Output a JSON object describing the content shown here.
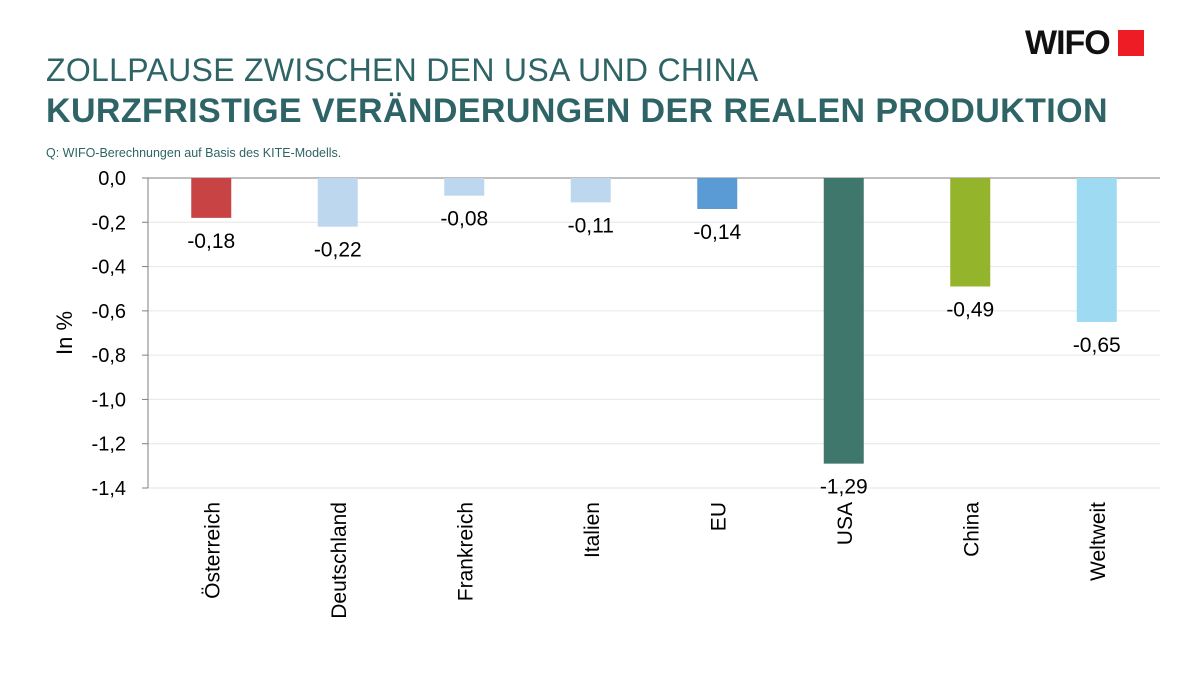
{
  "header": {
    "title_line1": "ZOLLPAUSE ZWISCHEN DEN USA UND CHINA",
    "title_line2": "KURZFRISTIGE VERÄNDERUNGEN DER REALEN PRODUKTION",
    "source": "Q: WIFO-Berechnungen auf Basis des KITE-Modells.",
    "logo_text": "WIFO",
    "logo_color": "#ee1c25"
  },
  "chart_data": {
    "type": "bar",
    "title": "KURZFRISTIGE VERÄNDERUNGEN DER REALEN PRODUKTION",
    "xlabel": "",
    "ylabel": "In %",
    "ylim": [
      -1.4,
      0.0
    ],
    "yticks": [
      0.0,
      -0.2,
      -0.4,
      -0.6,
      -0.8,
      -1.0,
      -1.2,
      -1.4
    ],
    "ytick_labels": [
      "0,0",
      "-0,2",
      "-0,4",
      "-0,6",
      "-0,8",
      "-1,0",
      "-1,2",
      "-1,4"
    ],
    "grid": true,
    "categories": [
      "Österreich",
      "Deutschland",
      "Frankreich",
      "Italien",
      "EU",
      "USA",
      "China",
      "Weltweit"
    ],
    "values": [
      -0.18,
      -0.22,
      -0.08,
      -0.11,
      -0.14,
      -1.29,
      -0.49,
      -0.65
    ],
    "value_labels": [
      "-0,18",
      "-0,22",
      "-0,08",
      "-0,11",
      "-0,14",
      "-1,29",
      "-0,49",
      "-0,65"
    ],
    "colors": [
      "#c84343",
      "#bdd7ee",
      "#bdd7ee",
      "#bdd7ee",
      "#5b9bd5",
      "#40776c",
      "#94b42c",
      "#9edbf3"
    ]
  }
}
